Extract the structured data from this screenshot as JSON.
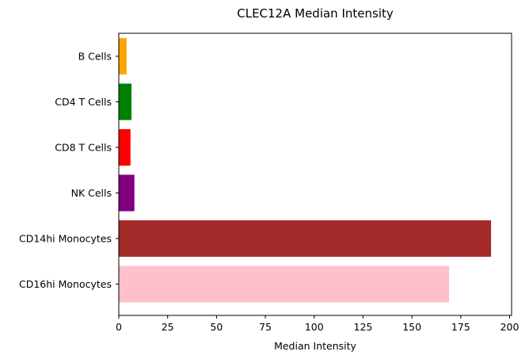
{
  "chart_data": {
    "type": "bar",
    "orientation": "horizontal",
    "title": "CLEC12A Median Intensity",
    "xlabel": "Median Intensity",
    "ylabel": "",
    "categories": [
      "B Cells",
      "CD4 T Cells",
      "CD8 T Cells",
      "NK Cells",
      "CD14hi Monocytes",
      "CD16hi Monocytes"
    ],
    "values": [
      4,
      6.5,
      6,
      8,
      190.5,
      169
    ],
    "colors": [
      "#ffa500",
      "#008000",
      "#ff0000",
      "#800080",
      "#a52a2a",
      "#ffc0cb"
    ],
    "xlim": [
      0,
      201
    ],
    "xticks": [
      0,
      25,
      50,
      75,
      100,
      125,
      150,
      175,
      200
    ],
    "grid": false,
    "legend": "none"
  }
}
